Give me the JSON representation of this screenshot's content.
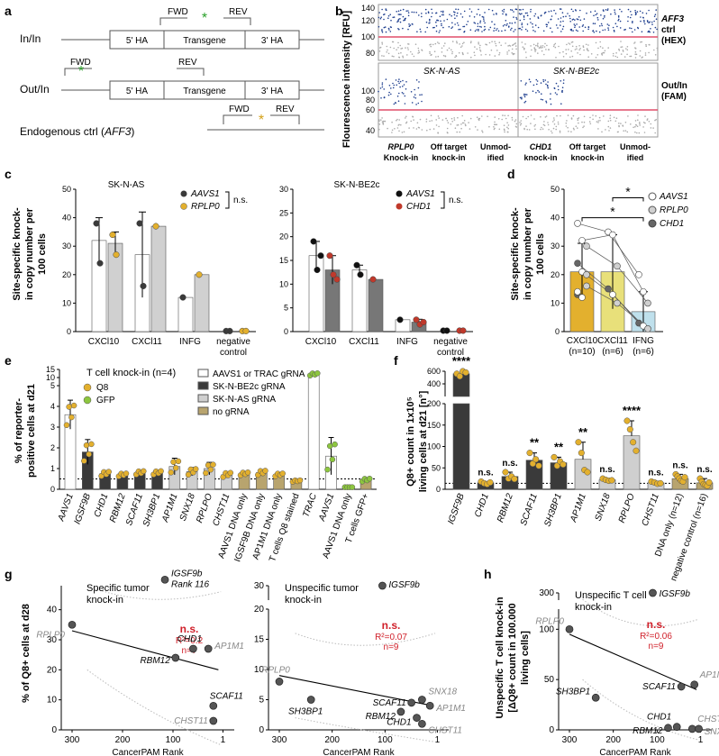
{
  "colors": {
    "yellow": "#e3b02e",
    "green": "#8dc63f",
    "dark": "#3a3a3a",
    "light": "#d0d0d0",
    "olive": "#b8a46e",
    "red": "#c0392b",
    "pink": "#e04f6a",
    "blue": "#1f3f8f",
    "nsred": "#d0202a"
  },
  "labels": {
    "a": "a",
    "b": "b",
    "c": "c",
    "d": "d",
    "e": "e",
    "f": "f",
    "g": "g",
    "h": "h"
  },
  "panel_a": {
    "rows": [
      "In/In",
      "Out/In",
      "Endogenous ctrl (AFF3)"
    ],
    "fwd": "FWD",
    "rev": "REV",
    "ha5": "5' HA",
    "transgene": "Transgene",
    "ha3": "3' HA"
  },
  "panel_b": {
    "ylabel": "Flourescence intensity [RFU]",
    "upper_ticks": [
      "140",
      "120",
      "100",
      "80"
    ],
    "lower_ticks": [
      "100",
      "80",
      "60",
      "40"
    ],
    "right_top": [
      "AFF3",
      "ctrl",
      "(HEX)"
    ],
    "right_bottom": [
      "Out/In",
      "(FAM)"
    ],
    "cell_left": "SK-N-AS",
    "cell_right": "SK-N-BE2c",
    "xcats": [
      [
        "RPLP0",
        "Knock-in"
      ],
      [
        "Off target",
        "knock-in"
      ],
      [
        "Unmod-",
        "ified"
      ],
      [
        "CHD1",
        "knock-in"
      ],
      [
        "Off target",
        "knock-in"
      ],
      [
        "Unmod-",
        "ified"
      ]
    ]
  },
  "panel_c": {
    "ylabel": [
      "Site-specific knock-",
      "in copy number per",
      "100 cells"
    ],
    "left_title": "SK-N-AS",
    "right_title": "SK-N-BE2c",
    "left_legend": [
      "AAVS1",
      "RPLP0"
    ],
    "right_legend": [
      "AAVS1",
      "CHD1"
    ],
    "ns": "n.s.",
    "left_ticks": [
      "0",
      "10",
      "20",
      "30",
      "40",
      "50"
    ],
    "right_ticks": [
      "0",
      "5",
      "10",
      "15",
      "20",
      "25",
      "30"
    ],
    "cats": [
      "CXCl10",
      "CXCl11",
      "INFG",
      "negative",
      "control"
    ],
    "cats_right": [
      "CXCl10",
      "CXCl11",
      "INFG",
      "negative",
      "control"
    ]
  },
  "panel_d": {
    "ylabel": [
      "Site-specific knock-",
      "in copy number per",
      "100 cells"
    ],
    "ticks": [
      "0",
      "10",
      "20",
      "30",
      "40",
      "50"
    ],
    "cats": [
      [
        "CXCl10",
        "(n=10)"
      ],
      [
        "CXCl11",
        "(n=6)"
      ],
      [
        "IFNG",
        "(n=6)"
      ]
    ],
    "legend": [
      "AAVS1",
      "RPLP0",
      "CHD1"
    ],
    "star": "*"
  },
  "panel_e": {
    "title": "T cell knock-in (n=4)",
    "ylabel": [
      "% of reporter-",
      "positive cells  at d21"
    ],
    "ticks": [
      "0",
      "1",
      "2",
      "3",
      "4",
      "5",
      "10",
      "15"
    ],
    "dot_legend": [
      "Q8",
      "GFP"
    ],
    "bar_legend": [
      "AAVS1 or TRAC gRNA",
      "SK-N-BE2c gRNA",
      "SK-N-AS gRNA",
      "no gRNA"
    ],
    "cats": [
      "AAVS1",
      "IGSF9B",
      "CHD1",
      "RBM12",
      "SCAF11",
      "SH3BP1",
      "AP1M1",
      "SNX18",
      "RPLPO",
      "CHST11",
      "AAVS1 DNA only",
      "IGSF9B DNA only",
      "AP1M1 DNA only",
      "T cells Q8 stained",
      "TRAC",
      "AAVS1",
      "AAVS1 DNA only",
      "T cells GFP+"
    ]
  },
  "panel_f": {
    "ylabel": [
      "Q8+ count in 1x10⁵",
      "living cells at d21 [n°]"
    ],
    "ticks": [
      "0",
      "50",
      "100",
      "150",
      "200",
      "400",
      "600"
    ],
    "cats": [
      "IGSF9B",
      "CHD1",
      "RBM12",
      "SCAF11",
      "SH3BP1",
      "AP1M1",
      "SNX18",
      "RPLPO",
      "CHST11",
      "DNA only (n=12)",
      "negative control (n=16)"
    ],
    "sig": [
      "****",
      "n.s.",
      "n.s.",
      "**",
      "**",
      "**",
      "n.s.",
      "****",
      "n.s.",
      "n.s.",
      "n.s."
    ]
  },
  "panel_g": {
    "ylabel": "% of Q8+ cells at d28",
    "xlabel": "CancerPAM Rank",
    "xticks": [
      "300",
      "200",
      "100",
      "1"
    ],
    "left_title": [
      "Specific tumor",
      "knock-in"
    ],
    "right_title": [
      "Unspecific tumor",
      "knock-in"
    ],
    "left_yticks": [
      "0",
      "10",
      "20",
      "30",
      "40"
    ],
    "right_yticks": [
      "0",
      "5",
      "10",
      "15",
      "20",
      "30"
    ],
    "left_stats": [
      "n.s.",
      "R²=0.2",
      "n=7"
    ],
    "right_stats": [
      "n.s.",
      "R²=0.07",
      "n=9"
    ],
    "left_points": [
      "IGSF9b",
      "Rank 116",
      "RPLP0",
      "CHD1",
      "AP1M1",
      "RBM12",
      "SCAF11",
      "CHST11"
    ],
    "right_points": [
      "IGSF9b",
      "RPLP0",
      "SH3BP1",
      "SNX18",
      "SCAF11",
      "AP1M1",
      "RBM12",
      "CHD1",
      "CHST11"
    ]
  },
  "panel_h": {
    "ylabel": [
      "Unspecific T cell knock-in",
      "[ΔQ8+ count in 100.000",
      "living cells]"
    ],
    "title": [
      "Unspecific T cell",
      "knock-in"
    ],
    "yticks": [
      "0",
      "50",
      "100",
      "300"
    ],
    "xticks": [
      "300",
      "200",
      "100",
      "1"
    ],
    "xlabel": "CancerPAM Rank",
    "stats": [
      "n.s.",
      "R²=0.06",
      "n=9"
    ],
    "points": [
      "IGSF9b",
      "RPLP0",
      "SH3BP1",
      "AP1M1",
      "SCAF11",
      "CHD1",
      "CHST11",
      "RBM12",
      "SNX18"
    ]
  }
}
